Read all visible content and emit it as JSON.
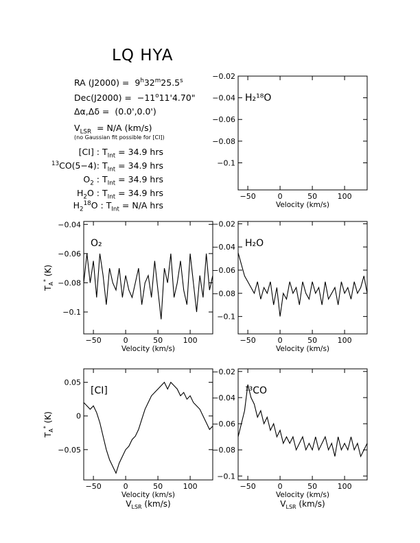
{
  "header": {
    "title": "LQ HYA",
    "ra_label": "RA (J2000) =",
    "ra_h": "9",
    "ra_m": "32",
    "ra_s": "25.5",
    "dec_label": "Dec(J2000) =",
    "dec_d": "−11",
    "dec_m": "11",
    "dec_s": "4.70",
    "offset_label": "Δα,Δδ =",
    "offset_value": "(0.0',0.0')",
    "vlsr_label": "= N/A  (km/s)",
    "vlsr_note": "(no Gaussian fit possible for [CI])",
    "tint_label": "T",
    "tint_sub": "Int",
    "integrations": [
      {
        "line": "[CI]",
        "value": "= 34.9 hrs"
      },
      {
        "line": "13CO(5−4)",
        "value": "= 34.9 hrs"
      },
      {
        "line": "O2",
        "value": "= 34.9 hrs"
      },
      {
        "line": "H2O",
        "value": "= 34.9 hrs"
      },
      {
        "line": "H218O",
        "value": "= N/A  hrs"
      }
    ]
  },
  "chart_data": [
    {
      "type": "line",
      "panel": "H218O",
      "label": "H₂¹⁸O",
      "xlabel": "Velocity (km/s)",
      "ylabel": "",
      "xlim": [
        -65,
        135
      ],
      "ylim": [
        -0.125,
        -0.02
      ],
      "xticks": [
        -50,
        0,
        50,
        100
      ],
      "yticks": [
        -0.1,
        -0.08,
        -0.06,
        -0.04,
        -0.02
      ],
      "ytick_labels": [
        "−0.1",
        "−0.08",
        "−0.06",
        "−0.04",
        "−0.02"
      ],
      "series": []
    },
    {
      "type": "line",
      "panel": "O2",
      "label": "O₂",
      "xlabel": "Velocity (km/s)",
      "ylabel": "T_A* (K)",
      "xlim": [
        -65,
        135
      ],
      "ylim": [
        -0.115,
        -0.038
      ],
      "xticks": [
        -50,
        0,
        50,
        100
      ],
      "yticks": [
        -0.1,
        -0.08,
        -0.06,
        -0.04
      ],
      "ytick_labels": [
        "−0.1",
        "−0.08",
        "−0.06",
        "−0.04"
      ],
      "series": [
        {
          "x": [
            -65,
            -60,
            -55,
            -50,
            -45,
            -40,
            -35,
            -30,
            -25,
            -20,
            -15,
            -10,
            -5,
            0,
            5,
            10,
            15,
            20,
            25,
            30,
            35,
            40,
            45,
            50,
            55,
            60,
            65,
            70,
            75,
            80,
            85,
            90,
            95,
            100,
            105,
            110,
            115,
            120,
            125,
            130,
            135
          ],
          "y": [
            -0.08,
            -0.06,
            -0.08,
            -0.065,
            -0.09,
            -0.06,
            -0.075,
            -0.095,
            -0.07,
            -0.08,
            -0.085,
            -0.07,
            -0.09,
            -0.075,
            -0.085,
            -0.09,
            -0.08,
            -0.07,
            -0.095,
            -0.08,
            -0.075,
            -0.09,
            -0.065,
            -0.085,
            -0.105,
            -0.07,
            -0.08,
            -0.06,
            -0.09,
            -0.08,
            -0.065,
            -0.085,
            -0.095,
            -0.06,
            -0.08,
            -0.1,
            -0.075,
            -0.09,
            -0.06,
            -0.085,
            -0.075
          ]
        }
      ]
    },
    {
      "type": "line",
      "panel": "H2O",
      "label": "H₂O",
      "xlabel": "Velocity (km/s)",
      "ylabel": "",
      "xlim": [
        -65,
        135
      ],
      "ylim": [
        -0.115,
        -0.018
      ],
      "xticks": [
        -50,
        0,
        50,
        100
      ],
      "yticks": [
        -0.1,
        -0.08,
        -0.06,
        -0.04,
        -0.02
      ],
      "ytick_labels": [
        "−0.1",
        "−0.08",
        "−0.06",
        "−0.04",
        "−0.02"
      ],
      "series": [
        {
          "x": [
            -65,
            -60,
            -55,
            -50,
            -45,
            -40,
            -35,
            -30,
            -25,
            -20,
            -15,
            -10,
            -5,
            0,
            5,
            10,
            15,
            20,
            25,
            30,
            35,
            40,
            45,
            50,
            55,
            60,
            65,
            70,
            75,
            80,
            85,
            90,
            95,
            100,
            105,
            110,
            115,
            120,
            125,
            130,
            135
          ],
          "y": [
            -0.045,
            -0.055,
            -0.065,
            -0.07,
            -0.075,
            -0.08,
            -0.07,
            -0.085,
            -0.075,
            -0.08,
            -0.07,
            -0.09,
            -0.075,
            -0.1,
            -0.08,
            -0.085,
            -0.07,
            -0.08,
            -0.075,
            -0.09,
            -0.07,
            -0.08,
            -0.085,
            -0.07,
            -0.08,
            -0.075,
            -0.09,
            -0.07,
            -0.085,
            -0.08,
            -0.075,
            -0.09,
            -0.07,
            -0.08,
            -0.075,
            -0.085,
            -0.07,
            -0.08,
            -0.075,
            -0.065,
            -0.08
          ]
        }
      ]
    },
    {
      "type": "line",
      "panel": "CI",
      "label": "[CI]",
      "xlabel": "Velocity (km/s)",
      "xlabel2": "V",
      "xlabel2_sub": "LSR",
      "xlabel2_unit": " (km/s)",
      "ylabel": "T_A* (K)",
      "xlim": [
        -65,
        135
      ],
      "ylim": [
        -0.095,
        0.07
      ],
      "xticks": [
        -50,
        0,
        50,
        100
      ],
      "yticks": [
        -0.05,
        0,
        0.05
      ],
      "ytick_labels": [
        "−0.05",
        "0",
        "0.05"
      ],
      "series": [
        {
          "x": [
            -65,
            -60,
            -55,
            -50,
            -45,
            -40,
            -35,
            -30,
            -25,
            -20,
            -15,
            -10,
            -5,
            0,
            5,
            10,
            15,
            20,
            25,
            30,
            35,
            40,
            45,
            50,
            55,
            60,
            65,
            70,
            75,
            80,
            85,
            90,
            95,
            100,
            105,
            110,
            115,
            120,
            125,
            130,
            135
          ],
          "y": [
            0.02,
            0.015,
            0.01,
            0.015,
            0.005,
            -0.01,
            -0.03,
            -0.05,
            -0.065,
            -0.075,
            -0.085,
            -0.07,
            -0.06,
            -0.05,
            -0.045,
            -0.035,
            -0.03,
            -0.02,
            -0.005,
            0.01,
            0.02,
            0.03,
            0.035,
            0.04,
            0.045,
            0.05,
            0.04,
            0.05,
            0.045,
            0.04,
            0.03,
            0.035,
            0.025,
            0.03,
            0.02,
            0.015,
            0.01,
            0.0,
            -0.01,
            -0.02,
            -0.015
          ]
        }
      ]
    },
    {
      "type": "line",
      "panel": "13CO",
      "label": "¹³CO",
      "xlabel": "Velocity (km/s)",
      "xlabel2": "V",
      "xlabel2_sub": "LSR",
      "xlabel2_unit": " (km/s)",
      "ylabel": "",
      "xlim": [
        -65,
        135
      ],
      "ylim": [
        -0.103,
        -0.018
      ],
      "xticks": [
        -50,
        0,
        50,
        100
      ],
      "yticks": [
        -0.1,
        -0.08,
        -0.06,
        -0.04,
        -0.02
      ],
      "ytick_labels": [
        "−0.1",
        "−0.08",
        "−0.06",
        "−0.04",
        "−0.02"
      ],
      "series": [
        {
          "x": [
            -65,
            -60,
            -55,
            -50,
            -45,
            -40,
            -35,
            -30,
            -25,
            -20,
            -15,
            -10,
            -5,
            0,
            5,
            10,
            15,
            20,
            25,
            30,
            35,
            40,
            45,
            50,
            55,
            60,
            65,
            70,
            75,
            80,
            85,
            90,
            95,
            100,
            105,
            110,
            115,
            120,
            125,
            130,
            135
          ],
          "y": [
            -0.07,
            -0.06,
            -0.05,
            -0.03,
            -0.04,
            -0.045,
            -0.055,
            -0.05,
            -0.06,
            -0.055,
            -0.065,
            -0.06,
            -0.07,
            -0.065,
            -0.075,
            -0.07,
            -0.075,
            -0.07,
            -0.08,
            -0.075,
            -0.07,
            -0.08,
            -0.075,
            -0.08,
            -0.07,
            -0.08,
            -0.075,
            -0.07,
            -0.08,
            -0.075,
            -0.085,
            -0.07,
            -0.08,
            -0.075,
            -0.08,
            -0.07,
            -0.08,
            -0.075,
            -0.085,
            -0.08,
            -0.075
          ]
        }
      ]
    }
  ]
}
